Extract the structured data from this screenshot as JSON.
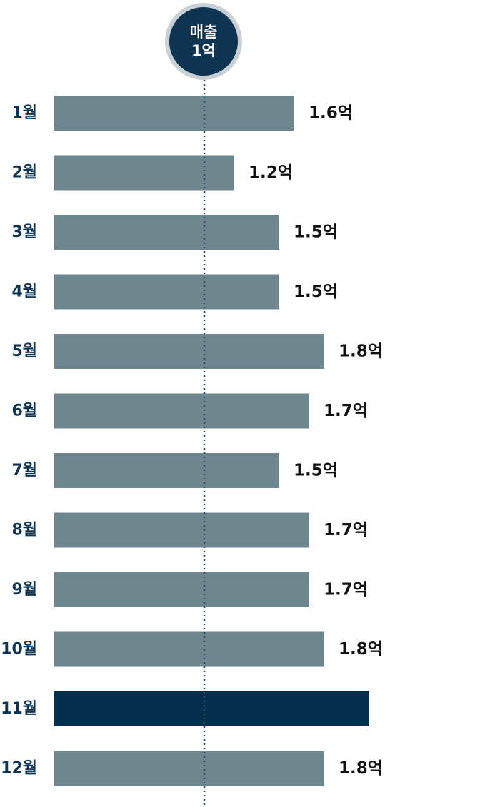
{
  "chart_data": {
    "type": "bar",
    "orientation": "horizontal",
    "categories": [
      "1월",
      "2월",
      "3월",
      "4월",
      "5월",
      "6월",
      "7월",
      "8월",
      "9월",
      "10월",
      "11월",
      "12월"
    ],
    "values": [
      1.6,
      1.2,
      1.5,
      1.5,
      1.8,
      1.7,
      1.5,
      1.7,
      1.7,
      1.8,
      2.1,
      1.8
    ],
    "value_labels": [
      "1.6억",
      "1.2억",
      "1.5억",
      "1.5억",
      "1.8억",
      "1.7억",
      "1.5억",
      "1.7억",
      "1.7억",
      "1.8억",
      "",
      "1.8억"
    ],
    "highlight_index": 10,
    "reference_line": {
      "value": 1.0,
      "label_line1": "매출",
      "label_line2": "1억"
    },
    "xlim": [
      0,
      2.2
    ],
    "colors": {
      "bar": "#6e868d",
      "highlight": "#02304d",
      "label": "#0e3451",
      "value_text": "#111111",
      "ref_line": "#2d4d63"
    }
  }
}
